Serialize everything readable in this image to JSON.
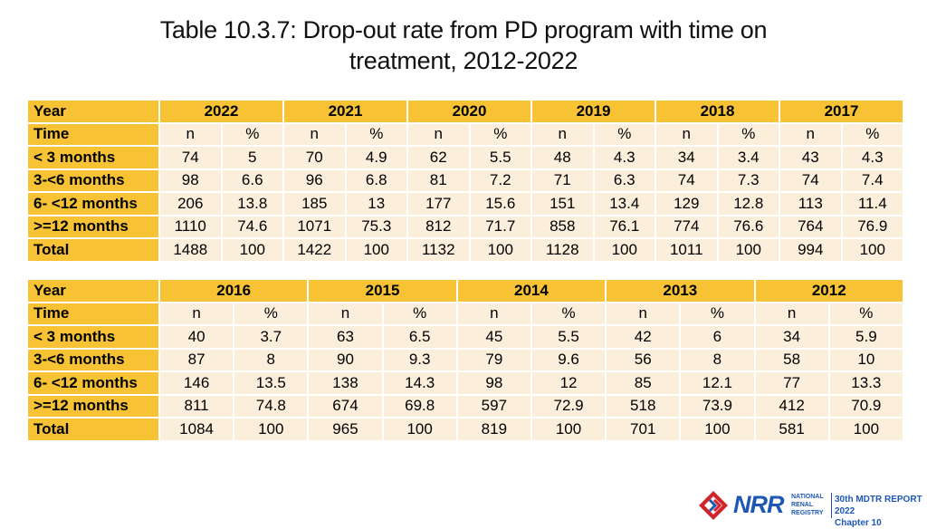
{
  "title": {
    "line1": "Table 10.3.7: Drop-out rate from PD program with time on",
    "line2": "treatment, 2012-2022"
  },
  "tables": [
    {
      "year_label": "Year",
      "time_label": "Time",
      "years": [
        "2022",
        "2021",
        "2020",
        "2019",
        "2018",
        "2017"
      ],
      "sub_headers": [
        "n",
        "%"
      ],
      "rows": [
        {
          "label": "< 3 months",
          "values": [
            "74",
            "5",
            "70",
            "4.9",
            "62",
            "5.5",
            "48",
            "4.3",
            "34",
            "3.4",
            "43",
            "4.3"
          ]
        },
        {
          "label": "3-<6 months",
          "values": [
            "98",
            "6.6",
            "96",
            "6.8",
            "81",
            "7.2",
            "71",
            "6.3",
            "74",
            "7.3",
            "74",
            "7.4"
          ]
        },
        {
          "label": "6- <12 months",
          "values": [
            "206",
            "13.8",
            "185",
            "13",
            "177",
            "15.6",
            "151",
            "13.4",
            "129",
            "12.8",
            "113",
            "11.4"
          ]
        },
        {
          "label": ">=12 months",
          "values": [
            "1110",
            "74.6",
            "1071",
            "75.3",
            "812",
            "71.7",
            "858",
            "76.1",
            "774",
            "76.6",
            "764",
            "76.9"
          ]
        },
        {
          "label": "Total",
          "values": [
            "1488",
            "100",
            "1422",
            "100",
            "1132",
            "100",
            "1128",
            "100",
            "1011",
            "100",
            "994",
            "100"
          ]
        }
      ]
    },
    {
      "year_label": "Year",
      "time_label": "Time",
      "years": [
        "2016",
        "2015",
        "2014",
        "2013",
        "2012"
      ],
      "sub_headers": [
        "n",
        "%"
      ],
      "rows": [
        {
          "label": "< 3 months",
          "values": [
            "40",
            "3.7",
            "63",
            "6.5",
            "45",
            "5.5",
            "42",
            "6",
            "34",
            "5.9"
          ]
        },
        {
          "label": "3-<6 months",
          "values": [
            "87",
            "8",
            "90",
            "9.3",
            "79",
            "9.6",
            "56",
            "8",
            "58",
            "10"
          ]
        },
        {
          "label": "6- <12 months",
          "values": [
            "146",
            "13.5",
            "138",
            "14.3",
            "98",
            "12",
            "85",
            "12.1",
            "77",
            "13.3"
          ]
        },
        {
          "label": ">=12 months",
          "values": [
            "811",
            "74.8",
            "674",
            "69.8",
            "597",
            "72.9",
            "518",
            "73.9",
            "412",
            "70.9"
          ]
        },
        {
          "label": "Total",
          "values": [
            "1084",
            "100",
            "965",
            "100",
            "819",
            "100",
            "701",
            "100",
            "581",
            "100"
          ]
        }
      ]
    }
  ],
  "footer": {
    "logo_text": "NRR",
    "org_line1": "NATIONAL",
    "org_line2": "RENAL",
    "org_line3": "REGISTRY",
    "report_line1": "30th MDTR REPORT 2022",
    "report_line2": "Chapter 10"
  },
  "colors": {
    "header_fill": "#f7c234",
    "cell_fill": "#fbefdc",
    "brand_blue": "#1f57b5",
    "brand_red": "#d2232a"
  }
}
